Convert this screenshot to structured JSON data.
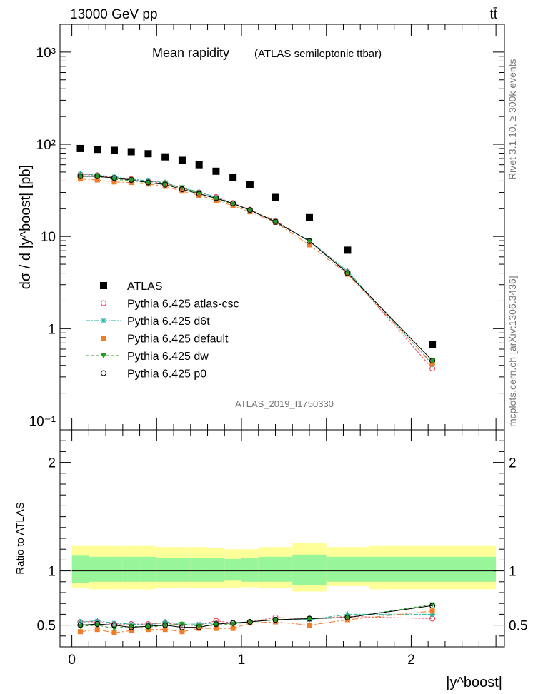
{
  "header": {
    "energy_label": "13000 GeV pp",
    "process_label": "tt̄"
  },
  "side_labels": {
    "rivet": "Rivet 3.1.10, ≥ 300k events",
    "mcplots": "mcplots.cern.ch [arXiv:1306.3436]"
  },
  "chart_data": [
    {
      "type": "scatter",
      "panel": "main",
      "title": "Mean rapidity",
      "subtitle": "(ATLAS semileptonic ttbar)",
      "ylabel": "dσ / d |y^boost| [pb]",
      "yscale": "log",
      "ylim": [
        0.08,
        2000
      ],
      "xlim": [
        -0.07,
        2.55
      ],
      "ytick_labels": [
        "10⁻¹",
        "1",
        "10",
        "10²",
        "10³"
      ],
      "ytick_values": [
        0.1,
        1,
        10,
        100,
        1000
      ],
      "analysis_id": "ATLAS_2019_I1750330",
      "x": [
        0.05,
        0.15,
        0.25,
        0.35,
        0.45,
        0.55,
        0.65,
        0.75,
        0.85,
        0.95,
        1.05,
        1.2,
        1.4,
        1.625,
        2.125
      ],
      "series": [
        {
          "name": "ATLAS",
          "color": "#000000",
          "marker": "square",
          "values": [
            90,
            88,
            86,
            83,
            79,
            73,
            67,
            60,
            51,
            44,
            36.5,
            26.5,
            16,
            7.1,
            0.67
          ]
        },
        {
          "name": "Pythia 6.425 atlas-csc",
          "color": "#e8445a",
          "marker": "open-circle",
          "dash": "3,2",
          "values": [
            47,
            46,
            43.5,
            42,
            39.5,
            38,
            33,
            30,
            26.8,
            23,
            19.5,
            14.8,
            8.9,
            4.1,
            0.37
          ]
        },
        {
          "name": "Pythia 6.425 d6t",
          "color": "#1fb29f",
          "marker": "star",
          "dash": "6,2,2,2",
          "values": [
            47.5,
            46.5,
            44.5,
            42,
            40,
            38.5,
            33.5,
            30.5,
            26.5,
            22.8,
            19.2,
            14.5,
            9,
            4.2,
            0.41
          ]
        },
        {
          "name": "Pythia 6.425 default",
          "color": "#f07d28",
          "marker": "filled-square",
          "dash": "8,3,2,3",
          "values": [
            42,
            41,
            39,
            38.5,
            37,
            35,
            31,
            28,
            24.5,
            21.5,
            18.5,
            14.2,
            8.1,
            3.9,
            0.42
          ]
        },
        {
          "name": "Pythia 6.425 dw",
          "color": "#1e9e1e",
          "marker": "triangle-down",
          "dash": "4,3",
          "values": [
            45,
            45,
            41.5,
            40.5,
            38,
            37,
            34,
            29.5,
            25.5,
            22.5,
            19.2,
            14.5,
            8.9,
            4.0,
            0.45
          ]
        },
        {
          "name": "Pythia 6.425 p0",
          "color": "#000000",
          "marker": "open-circle",
          "dash": "",
          "values": [
            45,
            45,
            43,
            41,
            38.5,
            36.5,
            32.5,
            29,
            26,
            22.8,
            19.3,
            14.4,
            8.9,
            4.0,
            0.45
          ]
        }
      ]
    },
    {
      "type": "scatter",
      "panel": "ratio",
      "ylabel": "Ratio to ATLAS",
      "xlabel": "|y^boost|",
      "ylim": [
        0.3,
        2.3
      ],
      "xlim": [
        -0.07,
        2.55
      ],
      "ytick_labels": [
        "0.5",
        "1",
        "2"
      ],
      "ytick_values": [
        0.5,
        1,
        2
      ],
      "xtick_labels": [
        "0",
        "1",
        "2"
      ],
      "xtick_values": [
        0,
        1,
        2
      ],
      "x": [
        0.05,
        0.15,
        0.25,
        0.35,
        0.45,
        0.55,
        0.65,
        0.75,
        0.85,
        0.95,
        1.05,
        1.2,
        1.4,
        1.625,
        2.125
      ],
      "bin_edges": [
        0,
        0.1,
        0.2,
        0.3,
        0.4,
        0.5,
        0.6,
        0.7,
        0.8,
        0.9,
        1.0,
        1.1,
        1.3,
        1.5,
        1.75,
        2.5
      ],
      "band_stat": [
        [
          0.89,
          1.14
        ],
        [
          0.9,
          1.13
        ],
        [
          0.9,
          1.13
        ],
        [
          0.9,
          1.13
        ],
        [
          0.9,
          1.13
        ],
        [
          0.9,
          1.12
        ],
        [
          0.9,
          1.12
        ],
        [
          0.9,
          1.12
        ],
        [
          0.9,
          1.12
        ],
        [
          0.91,
          1.11
        ],
        [
          0.9,
          1.12
        ],
        [
          0.9,
          1.13
        ],
        [
          0.87,
          1.15
        ],
        [
          0.9,
          1.13
        ],
        [
          0.9,
          1.13
        ]
      ],
      "band_total": [
        [
          0.84,
          1.23
        ],
        [
          0.83,
          1.23
        ],
        [
          0.83,
          1.23
        ],
        [
          0.83,
          1.23
        ],
        [
          0.83,
          1.23
        ],
        [
          0.84,
          1.22
        ],
        [
          0.84,
          1.22
        ],
        [
          0.84,
          1.22
        ],
        [
          0.84,
          1.21
        ],
        [
          0.84,
          1.2
        ],
        [
          0.85,
          1.2
        ],
        [
          0.84,
          1.22
        ],
        [
          0.81,
          1.26
        ],
        [
          0.86,
          1.22
        ],
        [
          0.83,
          1.23
        ]
      ],
      "series": [
        {
          "name": "Pythia 6.425 atlas-csc",
          "color": "#e8445a",
          "marker": "open-circle",
          "dash": "3,2",
          "values": [
            0.53,
            0.53,
            0.51,
            0.51,
            0.51,
            0.52,
            0.5,
            0.5,
            0.54,
            0.52,
            0.53,
            0.57,
            0.56,
            0.58,
            0.56
          ]
        },
        {
          "name": "Pythia 6.425 d6t",
          "color": "#1fb29f",
          "marker": "star",
          "dash": "6,2,2,2",
          "values": [
            0.53,
            0.54,
            0.52,
            0.51,
            0.5,
            0.53,
            0.51,
            0.51,
            0.52,
            0.52,
            0.53,
            0.55,
            0.55,
            0.6,
            0.6
          ]
        },
        {
          "name": "Pythia 6.425 default",
          "color": "#f07d28",
          "marker": "filled-square",
          "dash": "8,3,2,3",
          "values": [
            0.44,
            0.46,
            0.43,
            0.45,
            0.46,
            0.46,
            0.44,
            0.47,
            0.47,
            0.47,
            0.52,
            0.53,
            0.5,
            0.55,
            0.63
          ]
        },
        {
          "name": "Pythia 6.425 dw",
          "color": "#1e9e1e",
          "marker": "triangle-down",
          "dash": "4,3",
          "values": [
            0.49,
            0.5,
            0.47,
            0.49,
            0.48,
            0.5,
            0.51,
            0.49,
            0.5,
            0.51,
            0.53,
            0.55,
            0.56,
            0.57,
            0.69
          ]
        },
        {
          "name": "Pythia 6.425 p0",
          "color": "#000000",
          "marker": "open-circle",
          "dash": "",
          "values": [
            0.5,
            0.51,
            0.5,
            0.48,
            0.49,
            0.5,
            0.48,
            0.48,
            0.51,
            0.52,
            0.53,
            0.55,
            0.56,
            0.57,
            0.68
          ]
        }
      ]
    }
  ]
}
